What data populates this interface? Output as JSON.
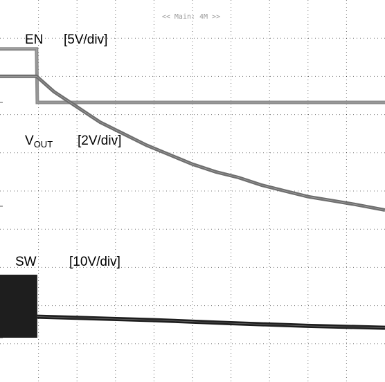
{
  "header": {
    "mode_label": "<< Main: 4M >>"
  },
  "chart_data": {
    "type": "line",
    "title": "",
    "xlabel": "",
    "ylabel": "",
    "grid": true,
    "xlim": [
      0,
      10
    ],
    "x_divisions": 10,
    "y_divisions": 10,
    "channels": [
      {
        "name": "EN",
        "scale_label": "[5V/div]",
        "volts_per_div": 5,
        "series": [
          {
            "x": [
              0.0,
              0.95,
              0.97,
              10.0
            ],
            "y": [
              7.0,
              7.0,
              0.0,
              0.0
            ]
          }
        ]
      },
      {
        "name": "V",
        "name_subscript": "OUT",
        "scale_label": "[2V/div]",
        "volts_per_div": 2,
        "series": [
          {
            "x": [
              0.0,
              0.95,
              1.4,
              2.0,
              2.6,
              3.2,
              3.8,
              4.4,
              5.0,
              5.6,
              6.2,
              6.8,
              7.4,
              8.0,
              8.6,
              9.2,
              10.0
            ],
            "y": [
              6.8,
              6.8,
              6.0,
              5.2,
              4.4,
              3.8,
              3.2,
              2.7,
              2.2,
              1.8,
              1.5,
              1.1,
              0.8,
              0.5,
              0.3,
              0.1,
              -0.2
            ]
          }
        ]
      },
      {
        "name": "SW",
        "scale_label": "[10V/div]",
        "volts_per_div": 10,
        "switching": {
          "x_start": 0.0,
          "x_end": 0.97,
          "high": 16.5,
          "low": 0.0
        },
        "series": [
          {
            "x": [
              0.97,
              2.0,
              4.0,
              6.0,
              8.0,
              10.0
            ],
            "y": [
              5.5,
              5.2,
              4.6,
              3.8,
              3.1,
              2.6
            ]
          }
        ]
      }
    ],
    "colors": {
      "EN": "#8c8c8c",
      "VOUT": "#6e6e6e",
      "SW": "#1e1e1e",
      "grid": "#000000"
    }
  }
}
